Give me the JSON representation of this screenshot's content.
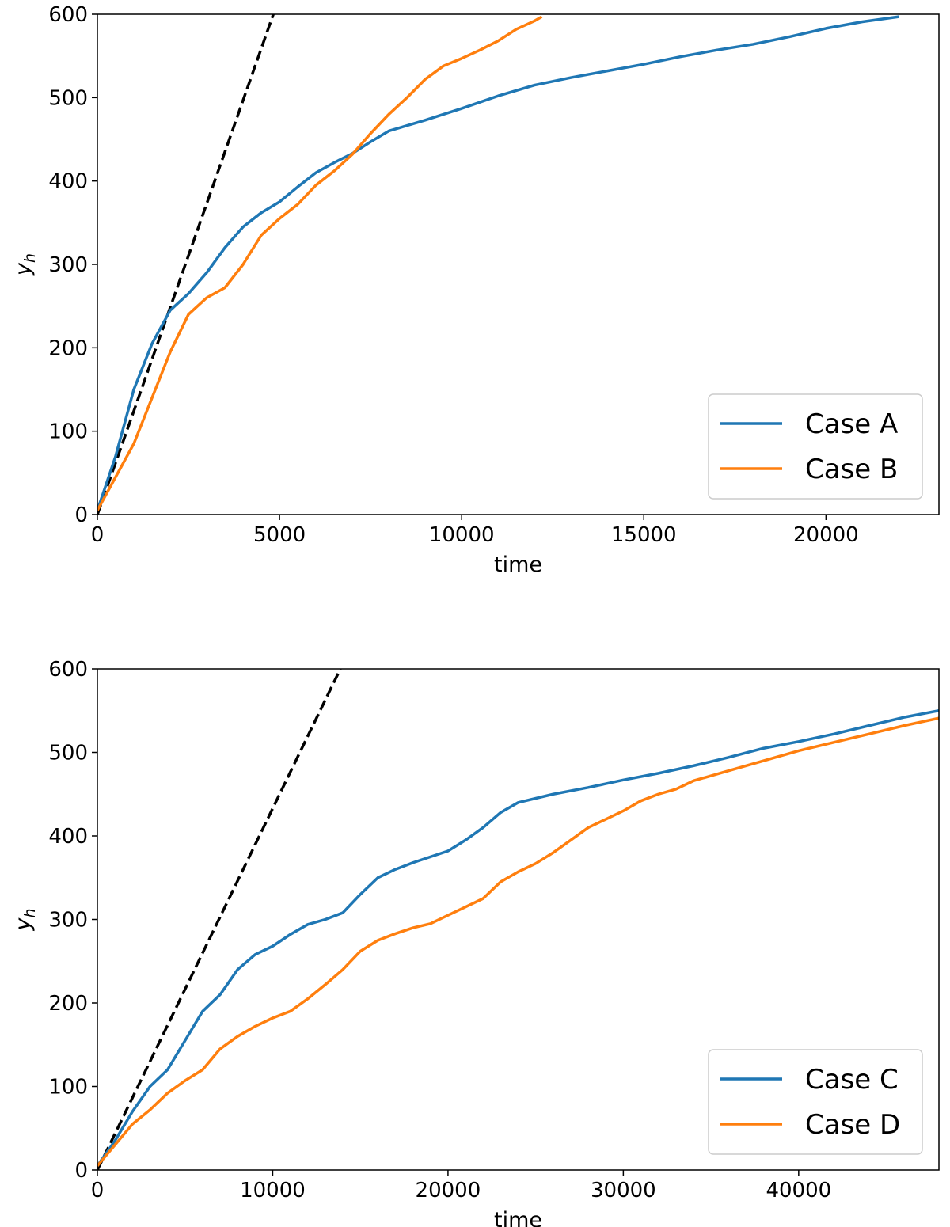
{
  "chart_data": [
    {
      "type": "line",
      "x_label": "time",
      "y_label": "y_h",
      "xlim": [
        0,
        23100
      ],
      "ylim": [
        0,
        600
      ],
      "xticks": [
        0,
        5000,
        10000,
        15000,
        20000
      ],
      "yticks": [
        0,
        100,
        200,
        300,
        400,
        500,
        600
      ],
      "legend": "lower right",
      "grid": false,
      "reference_line": {
        "color": "#000000",
        "style": "dashed",
        "x": [
          0,
          4830
        ],
        "values": [
          0,
          600
        ]
      },
      "series": [
        {
          "name": "Case A",
          "color": "#1f77b4",
          "x": [
            0,
            500,
            1000,
            1500,
            2000,
            2500,
            3000,
            3500,
            4000,
            4500,
            5000,
            5500,
            6000,
            6500,
            7000,
            7500,
            8000,
            9000,
            10000,
            11000,
            12000,
            13000,
            14000,
            15000,
            16000,
            17000,
            18000,
            19000,
            20000,
            21000,
            22000
          ],
          "values": [
            5,
            70,
            150,
            205,
            245,
            265,
            290,
            320,
            345,
            362,
            375,
            393,
            410,
            422,
            433,
            447,
            460,
            473,
            487,
            502,
            515,
            524,
            532,
            540,
            549,
            557,
            564,
            573,
            583,
            591,
            597
          ]
        },
        {
          "name": "Case B",
          "color": "#ff7f0e",
          "x": [
            0,
            500,
            1000,
            1500,
            2000,
            2500,
            3000,
            3500,
            4000,
            4500,
            5000,
            5500,
            6000,
            6500,
            7000,
            7500,
            8000,
            8500,
            9000,
            9500,
            10000,
            10500,
            11000,
            11500,
            12000,
            12200
          ],
          "values": [
            5,
            45,
            85,
            140,
            195,
            240,
            260,
            272,
            300,
            335,
            355,
            372,
            395,
            412,
            432,
            457,
            480,
            500,
            522,
            538,
            547,
            557,
            568,
            582,
            592,
            597
          ]
        }
      ]
    },
    {
      "type": "line",
      "x_label": "time",
      "y_label": "y_h",
      "xlim": [
        0,
        48000
      ],
      "ylim": [
        0,
        600
      ],
      "xticks": [
        0,
        10000,
        20000,
        30000,
        40000
      ],
      "yticks": [
        0,
        100,
        200,
        300,
        400,
        500,
        600
      ],
      "legend": "lower right",
      "grid": false,
      "reference_line": {
        "color": "#000000",
        "style": "dashed",
        "x": [
          0,
          13860
        ],
        "values": [
          0,
          600
        ]
      },
      "series": [
        {
          "name": "Case C",
          "color": "#1f77b4",
          "x": [
            0,
            1000,
            2000,
            3000,
            4000,
            5000,
            6000,
            7000,
            8000,
            9000,
            10000,
            11000,
            12000,
            13000,
            14000,
            15000,
            16000,
            17000,
            18000,
            19000,
            20000,
            21000,
            22000,
            23000,
            24000,
            26000,
            28000,
            30000,
            32000,
            34000,
            36000,
            38000,
            40000,
            42000,
            44000,
            46000,
            48000
          ],
          "values": [
            5,
            35,
            70,
            100,
            120,
            155,
            190,
            210,
            240,
            258,
            268,
            282,
            294,
            300,
            308,
            330,
            350,
            360,
            368,
            375,
            382,
            395,
            410,
            428,
            440,
            450,
            458,
            467,
            475,
            484,
            494,
            505,
            513,
            522,
            532,
            542,
            550
          ]
        },
        {
          "name": "Case D",
          "color": "#ff7f0e",
          "x": [
            0,
            1000,
            2000,
            3000,
            4000,
            5000,
            6000,
            7000,
            8000,
            9000,
            10000,
            11000,
            12000,
            13000,
            14000,
            15000,
            16000,
            17000,
            18000,
            19000,
            20000,
            21000,
            22000,
            23000,
            24000,
            25000,
            26000,
            27000,
            28000,
            29000,
            30000,
            31000,
            32000,
            33000,
            34000,
            36000,
            38000,
            40000,
            42000,
            44000,
            46000,
            48000
          ],
          "values": [
            5,
            30,
            55,
            72,
            92,
            107,
            120,
            145,
            160,
            172,
            182,
            190,
            205,
            222,
            240,
            262,
            275,
            283,
            290,
            295,
            305,
            315,
            325,
            345,
            357,
            367,
            380,
            395,
            410,
            420,
            430,
            442,
            450,
            456,
            466,
            478,
            490,
            502,
            512,
            522,
            532,
            541
          ]
        }
      ]
    }
  ]
}
